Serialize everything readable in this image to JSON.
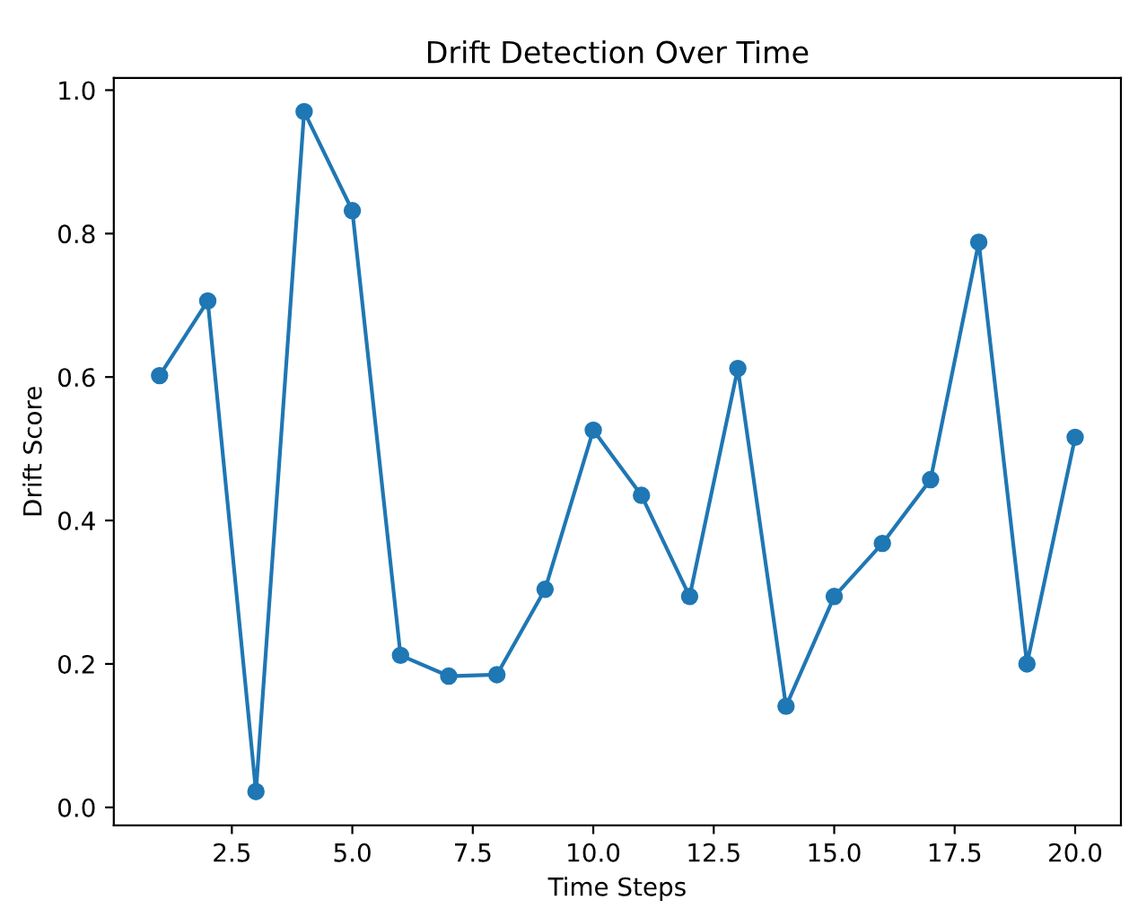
{
  "chart_data": {
    "type": "line",
    "title": "Drift Detection Over Time",
    "xlabel": "Time Steps",
    "ylabel": "Drift Score",
    "x": [
      1,
      2,
      3,
      4,
      5,
      6,
      7,
      8,
      9,
      10,
      11,
      12,
      13,
      14,
      15,
      16,
      17,
      18,
      19,
      20
    ],
    "series": [
      {
        "color": "#1f77b4",
        "values": [
          0.602,
          0.706,
          0.022,
          0.97,
          0.832,
          0.212,
          0.183,
          0.185,
          0.304,
          0.526,
          0.435,
          0.294,
          0.612,
          0.141,
          0.294,
          0.368,
          0.457,
          0.788,
          0.2,
          0.516
        ]
      }
    ],
    "marker": "circle",
    "line_style": "solid",
    "grid": false,
    "legend": false,
    "xlim": [
      0.05,
      20.95
    ],
    "ylim": [
      -0.025,
      1.017
    ],
    "xticks": [
      {
        "value": 2.5,
        "label": "2.5"
      },
      {
        "value": 5,
        "label": "5.0"
      },
      {
        "value": 7.5,
        "label": "7.5"
      },
      {
        "value": 10,
        "label": "10.0"
      },
      {
        "value": 12.5,
        "label": "12.5"
      },
      {
        "value": 15,
        "label": "15.0"
      },
      {
        "value": 17.5,
        "label": "17.5"
      },
      {
        "value": 20,
        "label": "20.0"
      }
    ],
    "yticks": [
      {
        "value": 0,
        "label": "0.0"
      },
      {
        "value": 0.2,
        "label": "0.2"
      },
      {
        "value": 0.4,
        "label": "0.4"
      },
      {
        "value": 0.6,
        "label": "0.6"
      },
      {
        "value": 0.8,
        "label": "0.8"
      },
      {
        "value": 1,
        "label": "1.0"
      }
    ]
  }
}
